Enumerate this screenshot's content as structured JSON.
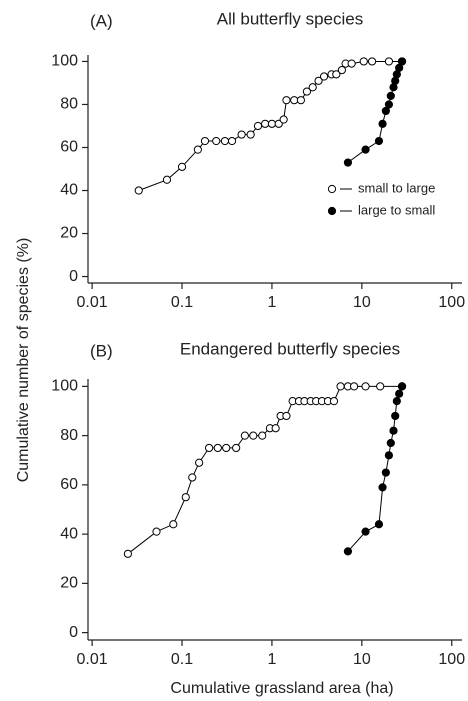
{
  "ylabel": "Cumulative number of species (%)",
  "xlabel": "Cumulative grassland area (ha)",
  "chart_data": [
    {
      "type": "line",
      "panel_label": "(A)",
      "title": "All butterfly species",
      "log_x": true,
      "xlim": [
        0.009,
        130
      ],
      "xticks": [
        0.01,
        0.1,
        1,
        10,
        100
      ],
      "ylim": [
        -3,
        103
      ],
      "yticks": [
        0,
        20,
        40,
        60,
        80,
        100
      ],
      "legend": "center right",
      "series": [
        {
          "name": "small to large",
          "color": "#000000",
          "filled": false,
          "x": [
            0.033,
            0.068,
            0.1,
            0.15,
            0.18,
            0.24,
            0.3,
            0.36,
            0.46,
            0.58,
            0.7,
            0.84,
            1.0,
            1.19,
            1.35,
            1.45,
            1.77,
            2.1,
            2.45,
            2.84,
            3.3,
            3.8,
            4.6,
            5.2,
            6.0,
            6.6,
            7.7,
            10.5,
            13,
            20,
            28
          ],
          "values": [
            40,
            45,
            51,
            59,
            63,
            63,
            63,
            63,
            66,
            66,
            70,
            71,
            71,
            71,
            73,
            82,
            82,
            82,
            86,
            88,
            91,
            93,
            94,
            94,
            96,
            99,
            99,
            100,
            100,
            100,
            100
          ]
        },
        {
          "name": "large to small",
          "color": "#000000",
          "filled": true,
          "x": [
            7,
            11,
            15.5,
            17,
            18.5,
            20,
            21,
            22.5,
            23.5,
            24.5,
            26,
            28
          ],
          "values": [
            53,
            59,
            63,
            71,
            77,
            80,
            84,
            88,
            91,
            94,
            97,
            100
          ]
        }
      ]
    },
    {
      "type": "line",
      "panel_label": "(B)",
      "title": "Endangered butterfly species",
      "log_x": true,
      "xlim": [
        0.009,
        130
      ],
      "xticks": [
        0.01,
        0.1,
        1,
        10,
        100
      ],
      "ylim": [
        -3,
        103
      ],
      "yticks": [
        0,
        20,
        40,
        60,
        80,
        100
      ],
      "series": [
        {
          "name": "small to large",
          "color": "#000000",
          "filled": false,
          "x": [
            0.025,
            0.052,
            0.08,
            0.11,
            0.13,
            0.155,
            0.2,
            0.25,
            0.31,
            0.4,
            0.5,
            0.62,
            0.78,
            0.95,
            1.1,
            1.25,
            1.45,
            1.7,
            2.0,
            2.3,
            2.7,
            3.1,
            3.6,
            4.2,
            4.9,
            5.8,
            7.0,
            8.2,
            11,
            16,
            28
          ],
          "values": [
            32,
            41,
            44,
            55,
            63,
            69,
            75,
            75,
            75,
            75,
            80,
            80,
            80,
            83,
            83,
            88,
            88,
            94,
            94,
            94,
            94,
            94,
            94,
            94,
            94,
            100,
            100,
            100,
            100,
            100,
            100
          ]
        },
        {
          "name": "large to small",
          "color": "#000000",
          "filled": true,
          "x": [
            7,
            11,
            15.5,
            17,
            18.5,
            20,
            21,
            22.5,
            23.5,
            24.5,
            26,
            28
          ],
          "values": [
            33,
            41,
            44,
            59,
            65,
            72,
            77,
            82,
            88,
            94,
            97,
            100
          ]
        }
      ]
    }
  ]
}
